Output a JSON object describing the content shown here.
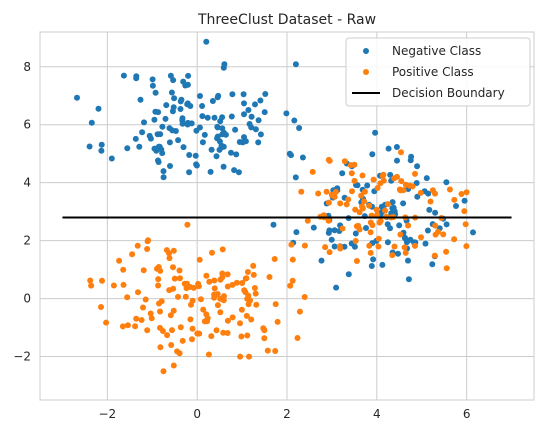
{
  "chart_data": {
    "type": "scatter",
    "title": "ThreeClust Dataset - Raw",
    "xlabel": "",
    "ylabel": "",
    "xlim": [
      -3.5,
      7.5
    ],
    "ylim": [
      -3.5,
      9.2
    ],
    "xticks": [
      -2,
      0,
      2,
      4,
      6
    ],
    "yticks": [
      -2,
      0,
      2,
      4,
      6,
      8
    ],
    "grid": true,
    "legend_position": "top-right",
    "colors": {
      "negative": "#1f77b4",
      "positive": "#ff7f0e",
      "boundary": "#000000"
    },
    "series": [
      {
        "name": "Negative Class",
        "kind": "points",
        "clusters": [
          {
            "center": [
              0.0,
              6.0
            ],
            "spread": [
              0.95,
              1.05
            ],
            "count": 140,
            "seed": 11
          },
          {
            "center": [
              4.0,
              2.8
            ],
            "spread": [
              0.85,
              0.95
            ],
            "count": 110,
            "seed": 23
          }
        ]
      },
      {
        "name": "Positive Class",
        "kind": "points",
        "clusters": [
          {
            "center": [
              0.0,
              0.0
            ],
            "spread": [
              1.0,
              1.05
            ],
            "count": 150,
            "seed": 37
          },
          {
            "center": [
              4.0,
              3.0
            ],
            "spread": [
              1.0,
              0.95
            ],
            "count": 110,
            "seed": 51
          }
        ]
      },
      {
        "name": "Decision Boundary",
        "kind": "line",
        "x": [
          -3.0,
          7.0
        ],
        "y": [
          2.8,
          2.8
        ]
      }
    ]
  }
}
